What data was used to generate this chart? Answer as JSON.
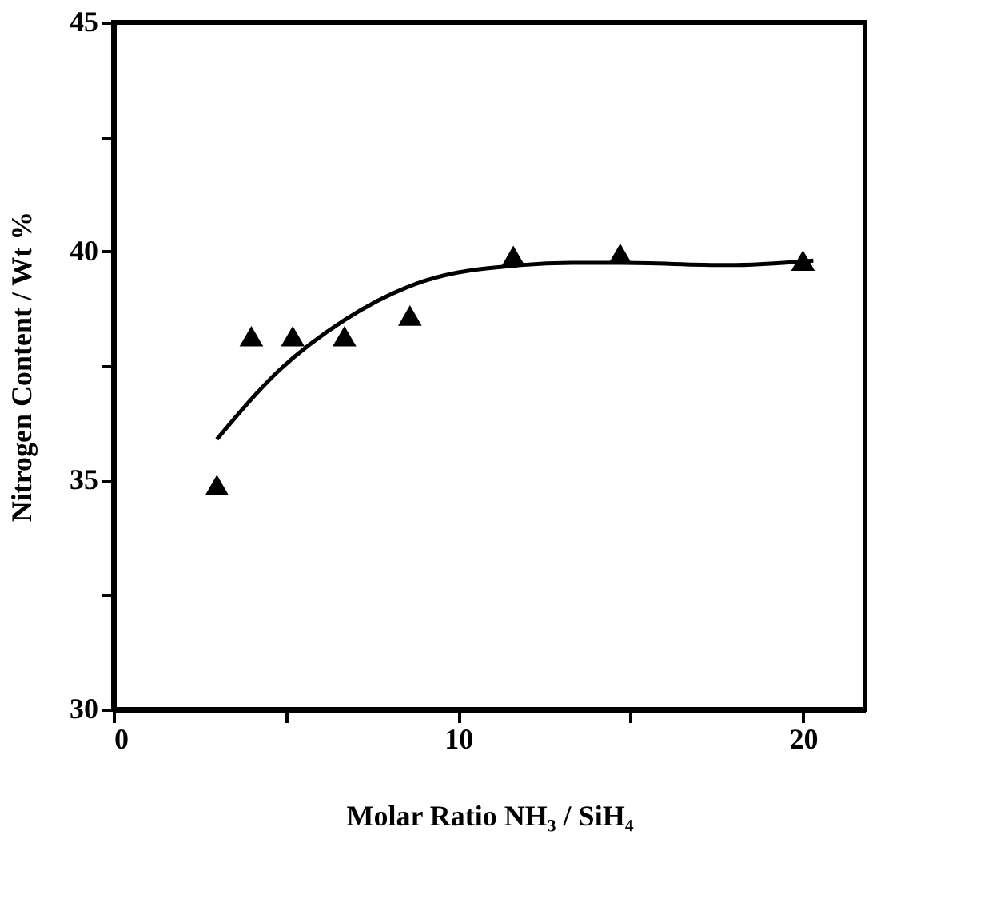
{
  "chart_data": {
    "type": "scatter",
    "xlabel": "Molar Ratio NH₃ / SiH₄",
    "ylabel": "Nitrogen Content / Wt %",
    "xlim": [
      0,
      21.8
    ],
    "ylim": [
      30,
      45
    ],
    "xticks": [
      0,
      {
        "value": 5,
        "label": null
      },
      10,
      {
        "value": 15,
        "label": null
      },
      20
    ],
    "yticks": [
      30,
      {
        "value": 32.5,
        "label": null
      },
      35,
      {
        "value": 37.5,
        "label": null
      },
      40,
      {
        "value": 42.5,
        "label": null
      },
      45
    ],
    "grid": false,
    "series": [
      {
        "marker": "triangle",
        "color": "#000000",
        "x": [
          3.0,
          4.0,
          5.2,
          6.7,
          8.6,
          11.6,
          14.7,
          20.0
        ],
        "values": [
          34.9,
          38.15,
          38.15,
          38.15,
          38.6,
          39.9,
          39.95,
          39.8
        ]
      },
      {
        "type": "line",
        "marker": "none",
        "line_style": "solid",
        "color": "#000000",
        "x": [
          3.0,
          4.8,
          6.7,
          9.0,
          11.8,
          13.3,
          14.7,
          17.8,
          20.3
        ],
        "values": [
          35.9,
          37.4,
          38.5,
          39.35,
          39.7,
          39.75,
          39.75,
          39.7,
          39.8
        ]
      }
    ]
  }
}
